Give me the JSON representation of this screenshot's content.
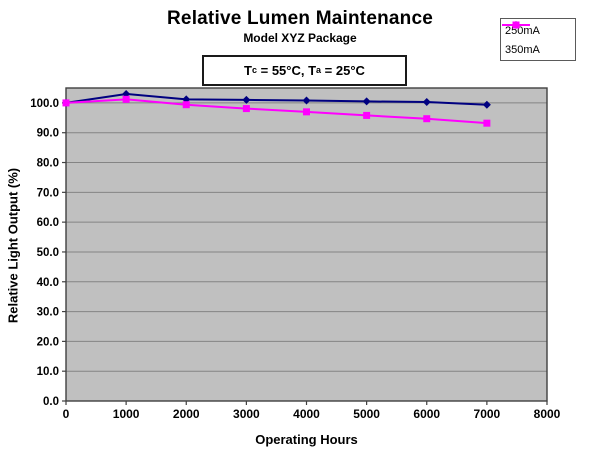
{
  "page": {
    "title": "Relative Lumen Maintenance",
    "subtitle": "Model XYZ Package"
  },
  "annotation": {
    "prefix1": "T",
    "sub1": "c",
    "mid": " = 55°C, T",
    "sub2": "a",
    "suffix": " = 25°C",
    "full_text": "Tc = 55°C, Ta = 25°C"
  },
  "chart_data": {
    "type": "line",
    "title": "Relative Lumen Maintenance",
    "subtitle": "Model XYZ Package",
    "xlabel": "Operating Hours",
    "ylabel": "Relative Light Output (%)",
    "x": [
      0,
      1000,
      2000,
      3000,
      4000,
      5000,
      6000,
      7000
    ],
    "series": [
      {
        "name": "250mA",
        "color": "#000080",
        "marker": "diamond",
        "values": [
          100.0,
          103.0,
          101.2,
          101.0,
          100.8,
          100.5,
          100.3,
          99.4
        ]
      },
      {
        "name": "350mA",
        "color": "#FF00FF",
        "marker": "square",
        "values": [
          100.0,
          101.2,
          99.4,
          98.1,
          97.0,
          95.8,
          94.7,
          93.2
        ]
      }
    ],
    "xlim": [
      0,
      8000
    ],
    "ylim": [
      0,
      105
    ],
    "x_ticks": [
      0,
      1000,
      2000,
      3000,
      4000,
      5000,
      6000,
      7000,
      8000
    ],
    "y_ticks": [
      0,
      10,
      20,
      30,
      40,
      50,
      60,
      70,
      80,
      90,
      100
    ],
    "y_tick_labels": [
      "0.0",
      "10.0",
      "20.0",
      "30.0",
      "40.0",
      "50.0",
      "60.0",
      "70.0",
      "80.0",
      "90.0",
      "100.0"
    ],
    "grid": "on",
    "plot_bg": "#C0C0C0",
    "grid_color": "#848484",
    "border_color": "#404040",
    "legend_position": "top-right"
  }
}
